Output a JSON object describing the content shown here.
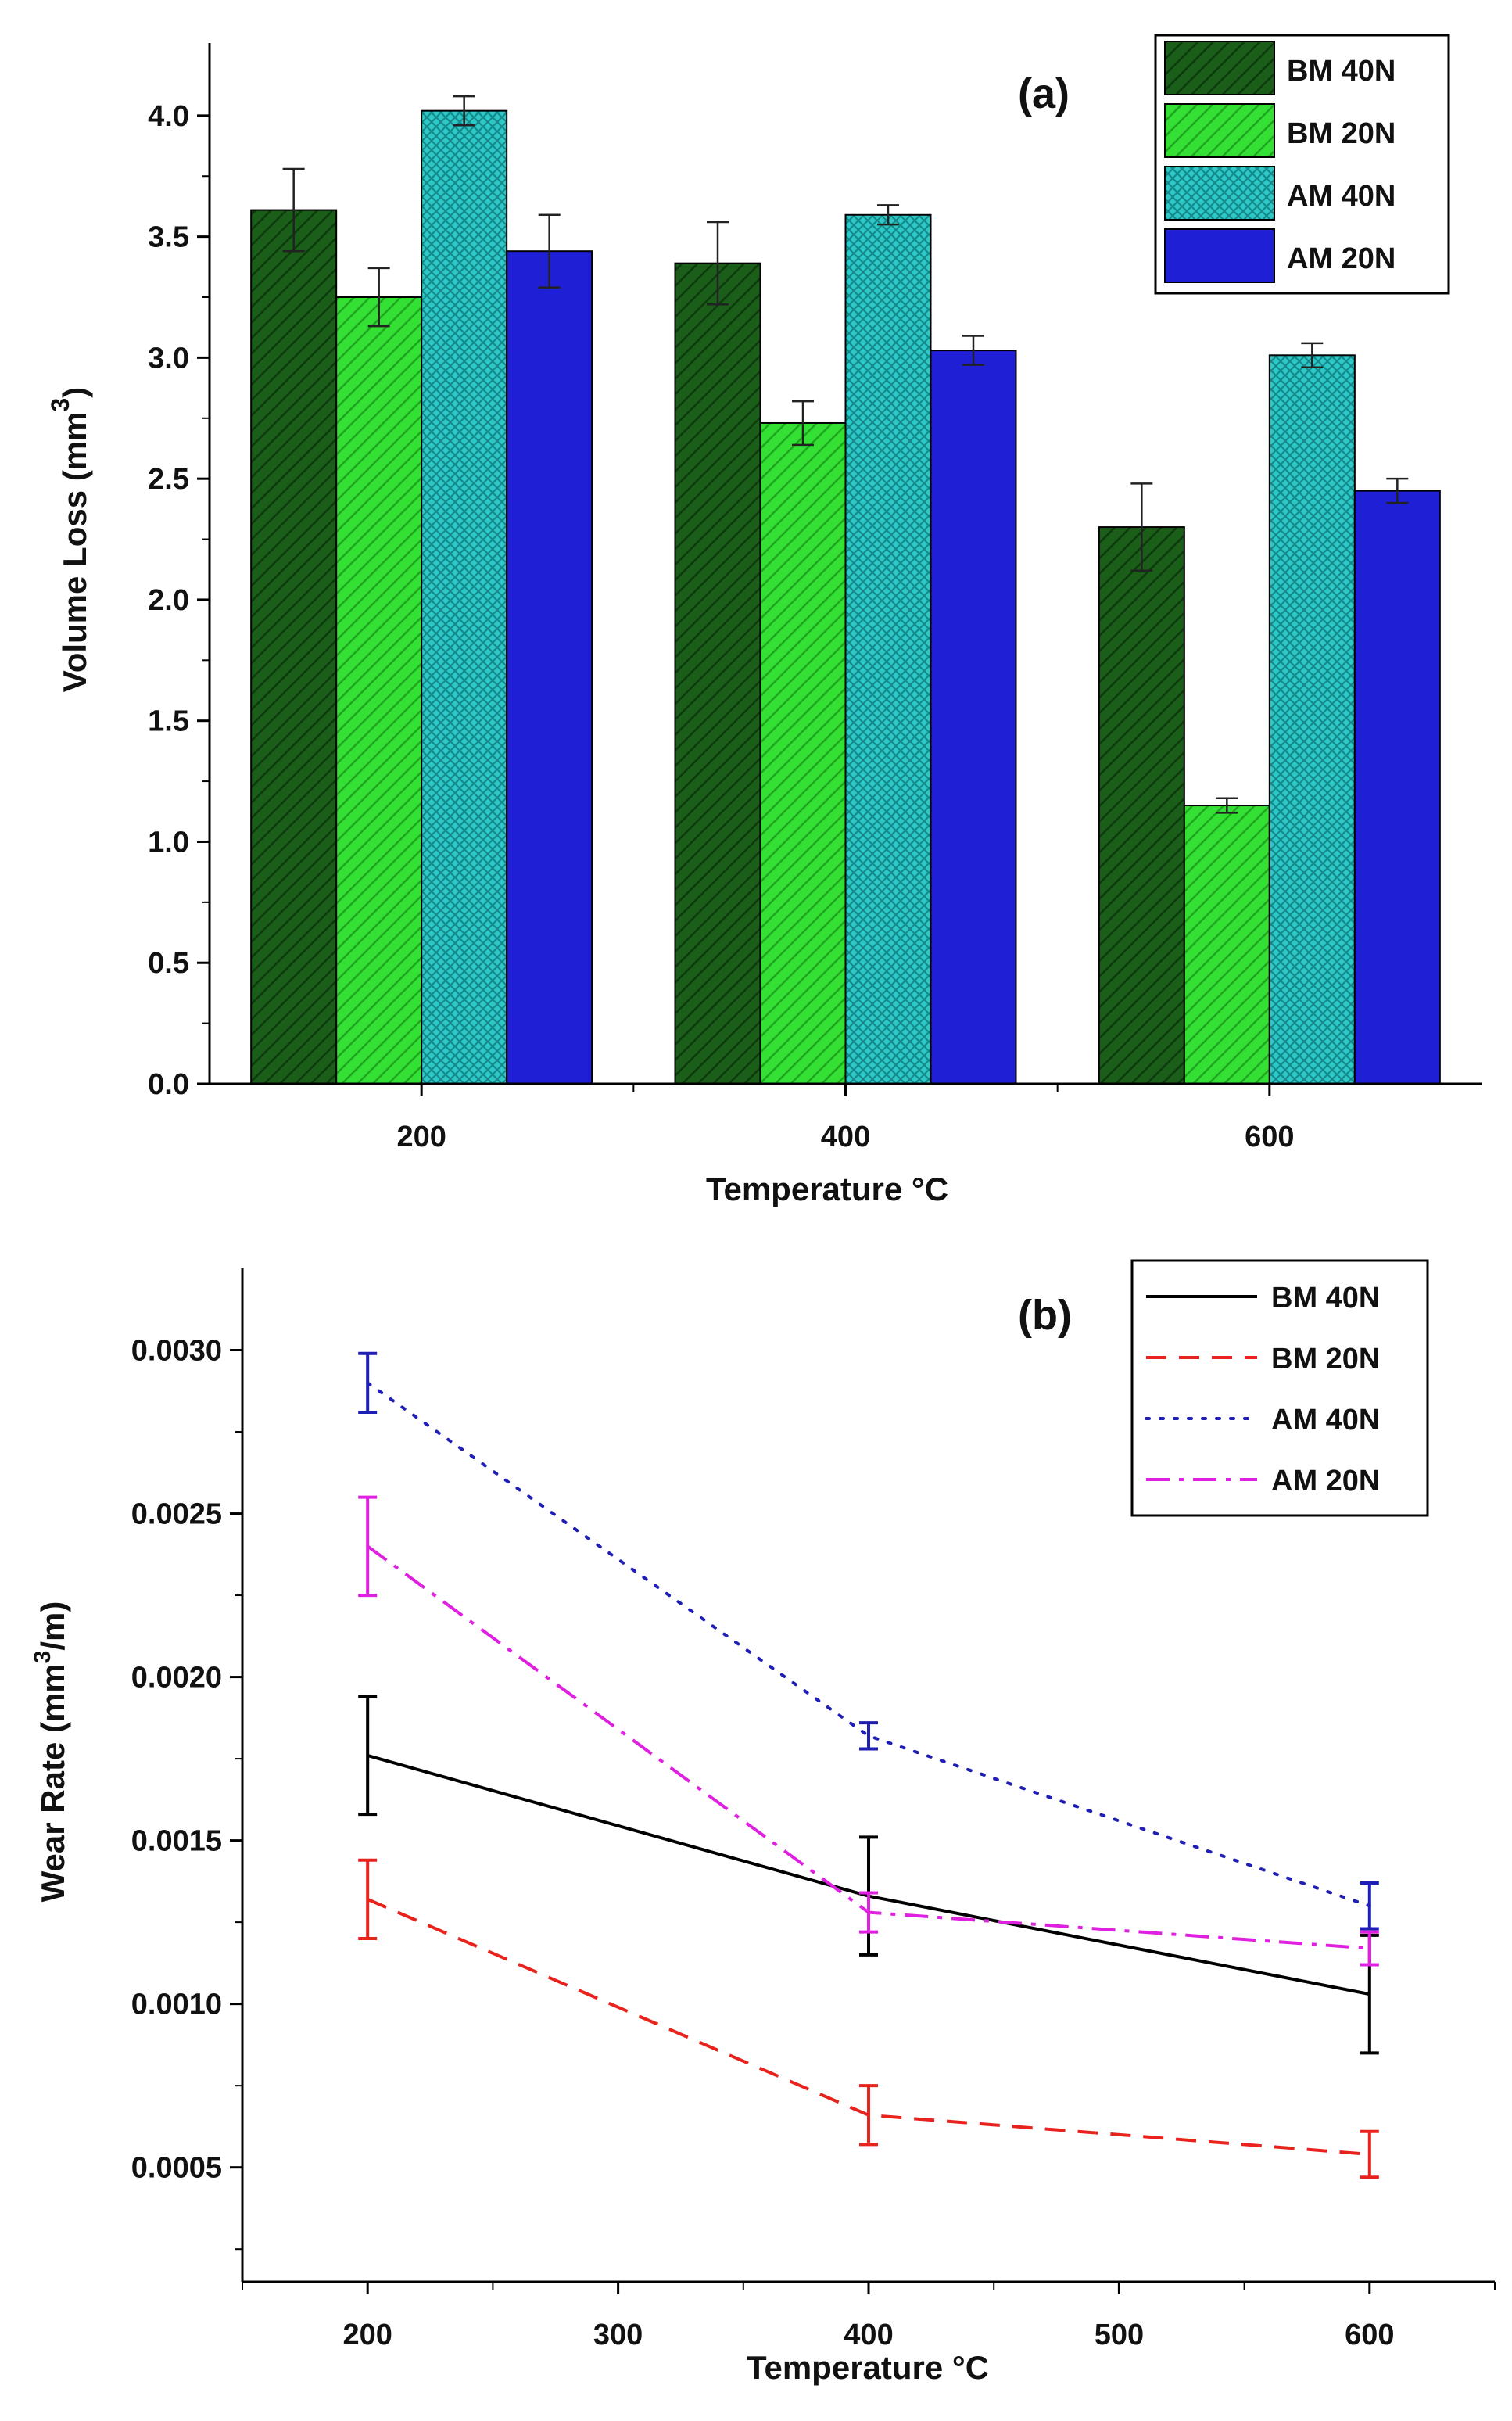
{
  "chart_data": [
    {
      "type": "bar",
      "panel_label": "(a)",
      "categories": [
        "200",
        "400",
        "600"
      ],
      "xlabel": "Temperature °C",
      "ylabel": "Volume Loss (mm",
      "ylabel_superscript": "3",
      "ylabel_close": ")",
      "ylim": [
        0,
        4.3
      ],
      "yticks": [
        0.0,
        0.5,
        1.0,
        1.5,
        2.0,
        2.5,
        3.0,
        3.5,
        4.0
      ],
      "ytick_labels": [
        "0.0",
        "0.5",
        "1.0",
        "1.5",
        "2.0",
        "2.5",
        "3.0",
        "3.5",
        "4.0"
      ],
      "legend_position": "top-right",
      "series": [
        {
          "name": "BM 40N",
          "color": "#1a5e1a",
          "pattern": "hatch-dark",
          "values": [
            3.61,
            3.39,
            2.3
          ],
          "errors": [
            0.17,
            0.17,
            0.18
          ]
        },
        {
          "name": "BM 20N",
          "color": "#33e033",
          "pattern": "hatch-light",
          "values": [
            3.25,
            2.73,
            1.15
          ],
          "errors": [
            0.12,
            0.09,
            0.03
          ]
        },
        {
          "name": "AM 40N",
          "color": "#2ec8c8",
          "pattern": "crosshatch",
          "values": [
            4.02,
            3.59,
            3.01
          ],
          "errors": [
            0.06,
            0.04,
            0.05
          ]
        },
        {
          "name": "AM 20N",
          "color": "#1f1fd6",
          "pattern": "solid",
          "values": [
            3.44,
            3.03,
            2.45
          ],
          "errors": [
            0.15,
            0.06,
            0.05
          ]
        }
      ]
    },
    {
      "type": "line",
      "panel_label": "(b)",
      "x": [
        200,
        400,
        600
      ],
      "xlabel": "Temperature °C",
      "ylabel": "Wear Rate (mm",
      "ylabel_superscript": "3",
      "ylabel_close": "/m)",
      "xlim": [
        150,
        650
      ],
      "xticks": [
        200,
        300,
        400,
        500,
        600
      ],
      "xtick_labels": [
        "200",
        "300",
        "400",
        "500",
        "600"
      ],
      "ylim": [
        0.00015,
        0.00325
      ],
      "yticks": [
        0.0005,
        0.001,
        0.0015,
        0.002,
        0.0025,
        0.003
      ],
      "ytick_labels": [
        "0.0005",
        "0.0010",
        "0.0015",
        "0.0020",
        "0.0025",
        "0.0030"
      ],
      "legend_position": "top-right",
      "series": [
        {
          "name": "BM 40N",
          "color": "#000000",
          "dash": "solid",
          "values": [
            0.00176,
            0.00133,
            0.00103
          ],
          "errors": [
            0.00018,
            0.00018,
            0.00018
          ]
        },
        {
          "name": "BM 20N",
          "color": "#e8231e",
          "dash": "dashed",
          "values": [
            0.00132,
            0.00066,
            0.00054
          ],
          "errors": [
            0.00012,
            9e-05,
            7e-05
          ]
        },
        {
          "name": "AM 40N",
          "color": "#1f1fb5",
          "dash": "dotted",
          "values": [
            0.0029,
            0.00182,
            0.0013
          ],
          "errors": [
            9e-05,
            4e-05,
            7e-05
          ]
        },
        {
          "name": "AM 20N",
          "color": "#e020e0",
          "dash": "dashdot",
          "values": [
            0.0024,
            0.00128,
            0.00117
          ],
          "errors": [
            0.00015,
            6e-05,
            5e-05
          ]
        }
      ]
    }
  ]
}
